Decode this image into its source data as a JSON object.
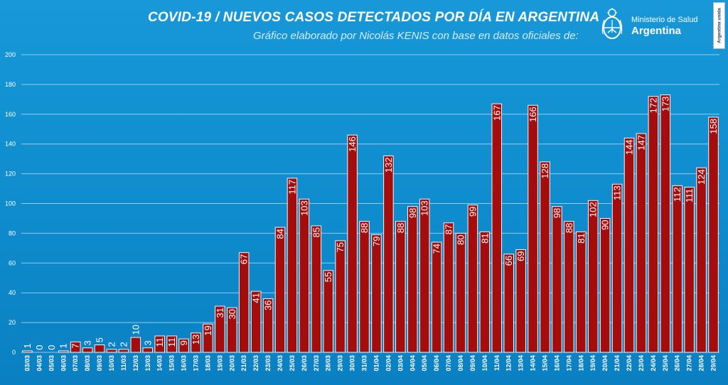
{
  "header": {
    "title": "COVID-19  /  NUEVOS CASOS DETECTADOS POR DÍA EN ARGENTINA",
    "subtitle": "Gráfico elaborado por Nicolás KENIS con base en datos oficiales de:"
  },
  "logo": {
    "ministry": "Ministerio de Salud",
    "country": "Argentina",
    "icon": "argentina-seal-icon",
    "slogan": "Argentina unida"
  },
  "colors": {
    "background": "#0f8fd0",
    "bar": "#a50d0d",
    "bar_border": "#f5f5f5",
    "text": "#ffffff"
  },
  "chart_data": {
    "type": "bar",
    "title": "COVID-19  /  NUEVOS CASOS DETECTADOS POR DÍA EN ARGENTINA",
    "xlabel": "",
    "ylabel": "",
    "ylim": [
      0,
      200
    ],
    "yticks": [
      0,
      20,
      40,
      60,
      80,
      100,
      120,
      140,
      160,
      180,
      200
    ],
    "grid": true,
    "legend": "none",
    "data_labels": true,
    "categories": [
      "03/03",
      "04/03",
      "05/03",
      "06/03",
      "07/03",
      "08/03",
      "09/03",
      "10/03",
      "11/03",
      "12/03",
      "13/03",
      "14/03",
      "15/03",
      "16/03",
      "17/03",
      "18/03",
      "19/03",
      "20/03",
      "21/03",
      "22/03",
      "23/03",
      "24/03",
      "25/03",
      "26/03",
      "27/03",
      "28/03",
      "29/03",
      "30/03",
      "31/03",
      "01/04",
      "02/04",
      "03/04",
      "04/04",
      "05/04",
      "06/04",
      "07/04",
      "08/04",
      "09/04",
      "10/04",
      "11/04",
      "12/04",
      "13/04",
      "14/04",
      "15/04",
      "16/04",
      "17/04",
      "18/04",
      "19/04",
      "20/04",
      "21/04",
      "22/04",
      "23/04",
      "24/04",
      "25/04",
      "26/04",
      "27/04",
      "28/04",
      "29/04"
    ],
    "values": [
      1,
      0,
      0,
      1,
      7,
      3,
      5,
      2,
      2,
      10,
      3,
      11,
      11,
      9,
      13,
      19,
      31,
      30,
      67,
      41,
      36,
      84,
      117,
      103,
      85,
      55,
      75,
      146,
      88,
      79,
      132,
      88,
      98,
      103,
      74,
      87,
      80,
      99,
      81,
      167,
      66,
      69,
      166,
      128,
      98,
      88,
      81,
      102,
      90,
      113,
      144,
      147,
      172,
      173,
      112,
      111,
      124,
      158
    ]
  }
}
